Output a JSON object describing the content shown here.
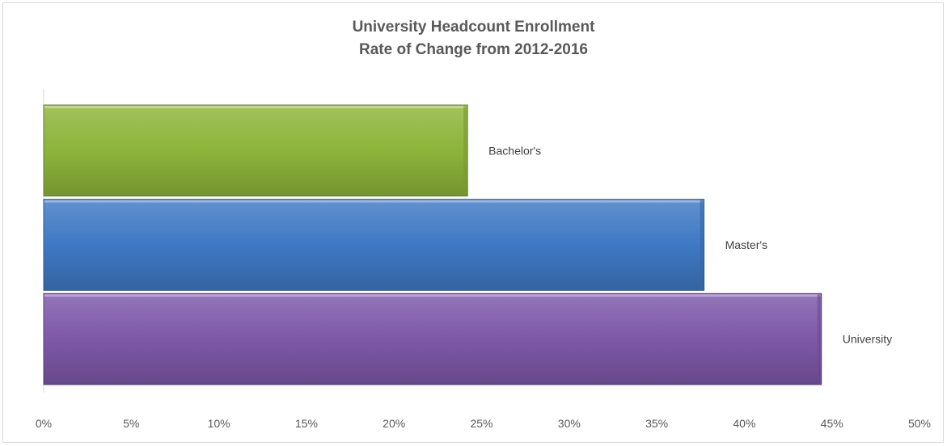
{
  "chart_data": {
    "type": "bar",
    "orientation": "horizontal",
    "title": "University Headcount Enrollment",
    "subtitle": "Rate of Change from 2012-2016",
    "categories": [
      "Bachelor's",
      "Master's",
      "University"
    ],
    "values": [
      24.2,
      37.7,
      44.4
    ],
    "bar_colors": [
      "#8db43a",
      "#3f79c4",
      "#7d58a8"
    ],
    "xlim": [
      0,
      50
    ],
    "x_ticks": [
      "0%",
      "5%",
      "10%",
      "15%",
      "20%",
      "25%",
      "30%",
      "35%",
      "40%",
      "45%",
      "50%"
    ],
    "x_tick_values": [
      0,
      5,
      10,
      15,
      20,
      25,
      30,
      35,
      40,
      45,
      50
    ],
    "grid": false,
    "legend": "none",
    "data_labels": "category-name"
  }
}
